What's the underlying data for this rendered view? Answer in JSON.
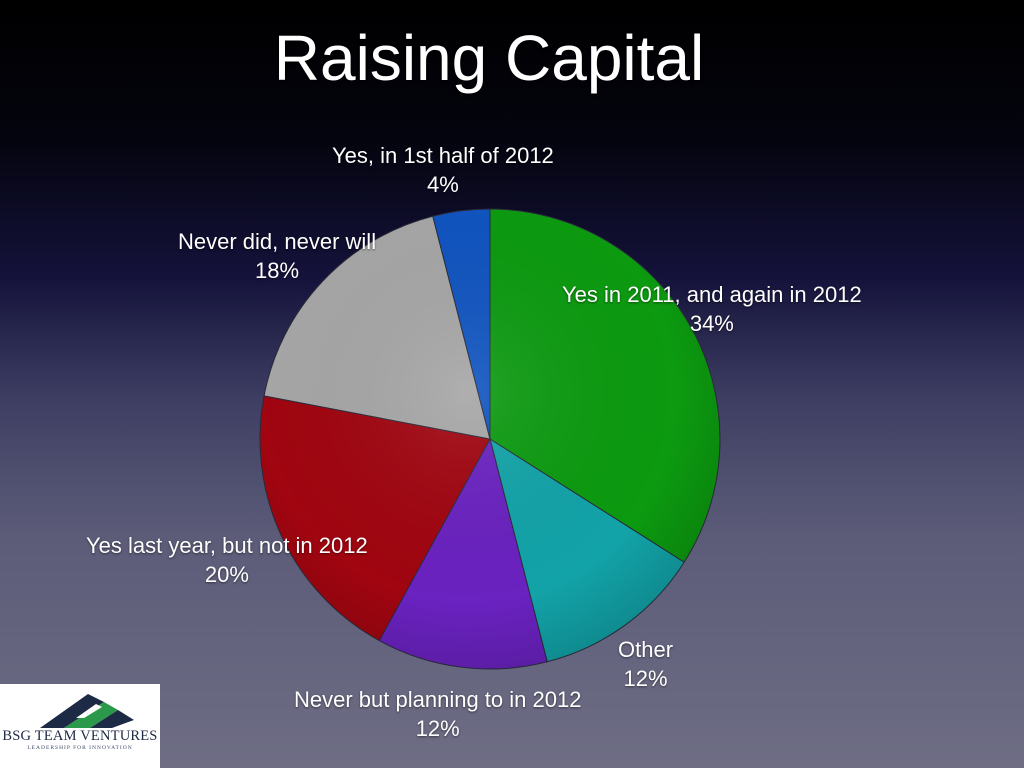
{
  "slide": {
    "title": "Raising Capital"
  },
  "logo": {
    "name": "BSG TEAM VENTURES",
    "tagline": "LEADERSHIP FOR INNOVATION"
  },
  "chart_data": {
    "type": "pie",
    "title": "",
    "slices": [
      {
        "label": "Yes in 2011, and again in 2012",
        "value": 34,
        "value_label": "34%",
        "color": "#0c9a10"
      },
      {
        "label": "Other",
        "value": 12,
        "value_label": "12%",
        "color": "#12a3a8"
      },
      {
        "label": "Never but planning to in 2012",
        "value": 12,
        "value_label": "12%",
        "color": "#6a22c0"
      },
      {
        "label": "Yes last year, but not in 2012",
        "value": 20,
        "value_label": "20%",
        "color": "#a00510"
      },
      {
        "label": "Never did, never will",
        "value": 18,
        "value_label": "18%",
        "color": "#a6a6a6"
      },
      {
        "label": "Yes, in 1st half of 2012",
        "value": 4,
        "value_label": "4%",
        "color": "#1054c0"
      }
    ],
    "start": "top",
    "direction": "clockwise"
  }
}
